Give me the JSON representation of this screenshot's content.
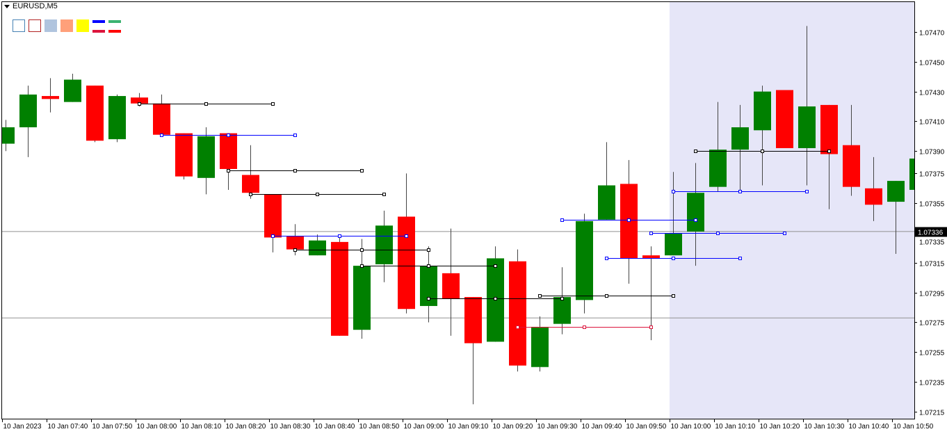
{
  "window": {
    "title": "EURUSD,M5",
    "collapse_icon": "triangle-down-icon"
  },
  "toolbar": {
    "items": [
      {
        "name": "rectangle-outline-blue",
        "border": "#4682b4",
        "fill": ""
      },
      {
        "name": "rectangle-outline-red",
        "border": "#b22222",
        "fill": ""
      },
      {
        "name": "color-lightsteelblue",
        "border": "",
        "fill": "#b0c4de"
      },
      {
        "name": "color-lightsalmon",
        "border": "",
        "fill": "#ffa07a"
      },
      {
        "name": "color-yellow",
        "border": "",
        "fill": "#ffff00"
      }
    ],
    "pairs": [
      {
        "name": "line-pair-blue-crimson",
        "top": "#0000ff",
        "bottom": "#dc143c"
      },
      {
        "name": "line-pair-green-red",
        "top": "#3cb371",
        "bottom": "#ff0000"
      }
    ]
  },
  "colors": {
    "bull": "#008000",
    "bear": "#ff0000",
    "shade": "#e6e6f8",
    "black_line": "#000000",
    "blue_line": "#0000ff",
    "red_line": "#dc143c",
    "level_line": "#909090"
  },
  "chart_data": {
    "type": "candlestick",
    "symbol": "EURUSD",
    "timeframe": "M5",
    "ylim": [
      1.0721,
      1.07478
    ],
    "y_ticks": [
      "1.07470",
      "1.07450",
      "1.07430",
      "1.07410",
      "1.07390",
      "1.07375",
      "1.07355",
      "1.07335",
      "1.07315",
      "1.07295",
      "1.07275",
      "1.07255",
      "1.07235",
      "1.07215"
    ],
    "x_ticks": [
      "10 Jan 2023",
      "10 Jan 07:40",
      "10 Jan 07:50",
      "10 Jan 08:00",
      "10 Jan 08:10",
      "10 Jan 08:20",
      "10 Jan 08:30",
      "10 Jan 08:40",
      "10 Jan 08:50",
      "10 Jan 09:00",
      "10 Jan 09:10",
      "10 Jan 09:20",
      "10 Jan 09:30",
      "10 Jan 09:40",
      "10 Jan 09:50",
      "10 Jan 10:00",
      "10 Jan 10:10",
      "10 Jan 10:20",
      "10 Jan 10:30",
      "10 Jan 10:40",
      "10 Jan 10:50"
    ],
    "current_price": "1.07336",
    "levels": [
      1.07336,
      1.07278
    ],
    "shaded_from": "10:00",
    "candles": [
      {
        "t": "07:30",
        "o": 1.07395,
        "h": 1.07411,
        "l": 1.0739,
        "c": 1.07406
      },
      {
        "t": "07:35",
        "o": 1.07406,
        "h": 1.07434,
        "l": 1.07386,
        "c": 1.07428
      },
      {
        "t": "07:40",
        "o": 1.07427,
        "h": 1.07439,
        "l": 1.07416,
        "c": 1.07425
      },
      {
        "t": "07:45",
        "o": 1.07423,
        "h": 1.07442,
        "l": 1.07423,
        "c": 1.07438
      },
      {
        "t": "07:50",
        "o": 1.07434,
        "h": 1.07434,
        "l": 1.07396,
        "c": 1.07397
      },
      {
        "t": "07:55",
        "o": 1.07398,
        "h": 1.07428,
        "l": 1.07396,
        "c": 1.07427
      },
      {
        "t": "08:00",
        "o": 1.07426,
        "h": 1.07429,
        "l": 1.0742,
        "c": 1.07422
      },
      {
        "t": "08:05",
        "o": 1.07422,
        "h": 1.07428,
        "l": 1.07401,
        "c": 1.07401
      },
      {
        "t": "08:10",
        "o": 1.07402,
        "h": 1.07402,
        "l": 1.07371,
        "c": 1.07373
      },
      {
        "t": "08:15",
        "o": 1.07372,
        "h": 1.07406,
        "l": 1.07361,
        "c": 1.074
      },
      {
        "t": "08:20",
        "o": 1.07402,
        "h": 1.07402,
        "l": 1.07364,
        "c": 1.07378
      },
      {
        "t": "08:25",
        "o": 1.07374,
        "h": 1.07394,
        "l": 1.07358,
        "c": 1.07362
      },
      {
        "t": "08:30",
        "o": 1.07361,
        "h": 1.07361,
        "l": 1.07322,
        "c": 1.07332
      },
      {
        "t": "08:35",
        "o": 1.07333,
        "h": 1.07341,
        "l": 1.0732,
        "c": 1.07324
      },
      {
        "t": "08:40",
        "o": 1.0732,
        "h": 1.07334,
        "l": 1.0732,
        "c": 1.0733
      },
      {
        "t": "08:45",
        "o": 1.07329,
        "h": 1.07333,
        "l": 1.07266,
        "c": 1.07266
      },
      {
        "t": "08:50",
        "o": 1.0727,
        "h": 1.07331,
        "l": 1.07264,
        "c": 1.07313
      },
      {
        "t": "08:55",
        "o": 1.07314,
        "h": 1.0735,
        "l": 1.07302,
        "c": 1.0734
      },
      {
        "t": "09:00",
        "o": 1.07346,
        "h": 1.07375,
        "l": 1.07281,
        "c": 1.07284
      },
      {
        "t": "09:05",
        "o": 1.07286,
        "h": 1.07326,
        "l": 1.07275,
        "c": 1.07313
      },
      {
        "t": "09:10",
        "o": 1.07308,
        "h": 1.07338,
        "l": 1.07266,
        "c": 1.07291
      },
      {
        "t": "09:15",
        "o": 1.07292,
        "h": 1.07292,
        "l": 1.0722,
        "c": 1.07261
      },
      {
        "t": "09:20",
        "o": 1.07262,
        "h": 1.07326,
        "l": 1.07262,
        "c": 1.07318
      },
      {
        "t": "09:25",
        "o": 1.07316,
        "h": 1.07324,
        "l": 1.07242,
        "c": 1.07246
      },
      {
        "t": "09:30",
        "o": 1.07245,
        "h": 1.07279,
        "l": 1.07242,
        "c": 1.07272
      },
      {
        "t": "09:35",
        "o": 1.07274,
        "h": 1.07312,
        "l": 1.07267,
        "c": 1.07292
      },
      {
        "t": "09:40",
        "o": 1.0729,
        "h": 1.07348,
        "l": 1.07281,
        "c": 1.07343
      },
      {
        "t": "09:45",
        "o": 1.07344,
        "h": 1.07396,
        "l": 1.07344,
        "c": 1.07367
      },
      {
        "t": "09:50",
        "o": 1.07368,
        "h": 1.07384,
        "l": 1.07301,
        "c": 1.07318
      },
      {
        "t": "09:55",
        "o": 1.0732,
        "h": 1.07326,
        "l": 1.07263,
        "c": 1.07318
      },
      {
        "t": "10:00",
        "o": 1.0732,
        "h": 1.07376,
        "l": 1.0732,
        "c": 1.07335
      },
      {
        "t": "10:05",
        "o": 1.07336,
        "h": 1.07382,
        "l": 1.07313,
        "c": 1.07362
      },
      {
        "t": "10:10",
        "o": 1.07366,
        "h": 1.07423,
        "l": 1.07363,
        "c": 1.07391
      },
      {
        "t": "10:15",
        "o": 1.07391,
        "h": 1.07421,
        "l": 1.07363,
        "c": 1.07406
      },
      {
        "t": "10:20",
        "o": 1.07404,
        "h": 1.07434,
        "l": 1.07367,
        "c": 1.0743
      },
      {
        "t": "10:25",
        "o": 1.07431,
        "h": 1.07431,
        "l": 1.07392,
        "c": 1.07392
      },
      {
        "t": "10:30",
        "o": 1.07392,
        "h": 1.07474,
        "l": 1.07367,
        "c": 1.0742
      },
      {
        "t": "10:35",
        "o": 1.07421,
        "h": 1.07421,
        "l": 1.07351,
        "c": 1.07388
      },
      {
        "t": "10:40",
        "o": 1.07394,
        "h": 1.07421,
        "l": 1.0736,
        "c": 1.07366
      },
      {
        "t": "10:45",
        "o": 1.07365,
        "h": 1.07386,
        "l": 1.07343,
        "c": 1.07354
      },
      {
        "t": "10:50",
        "o": 1.07356,
        "h": 1.0737,
        "l": 1.07321,
        "c": 1.0737
      },
      {
        "t": "10:55",
        "o": 1.07364,
        "h": 1.074,
        "l": 1.07359,
        "c": 1.07385
      }
    ],
    "segments": [
      {
        "from": "08:00",
        "to": "08:30",
        "price": 1.07422,
        "color": "black"
      },
      {
        "from": "08:05",
        "to": "08:35",
        "price": 1.07401,
        "color": "blue"
      },
      {
        "from": "08:20",
        "to": "08:50",
        "price": 1.07377,
        "color": "black"
      },
      {
        "from": "08:25",
        "to": "08:55",
        "price": 1.07361,
        "color": "black"
      },
      {
        "from": "08:30",
        "to": "09:00",
        "price": 1.07333,
        "color": "blue"
      },
      {
        "from": "08:35",
        "to": "09:05",
        "price": 1.07324,
        "color": "black"
      },
      {
        "from": "08:50",
        "to": "09:20",
        "price": 1.07313,
        "color": "black"
      },
      {
        "from": "09:05",
        "to": "09:35",
        "price": 1.07291,
        "color": "black"
      },
      {
        "from": "09:25",
        "to": "09:55",
        "price": 1.07272,
        "color": "red"
      },
      {
        "from": "09:35",
        "to": "10:05",
        "price": 1.07344,
        "color": "blue"
      },
      {
        "from": "09:30",
        "to": "10:00",
        "price": 1.07293,
        "color": "black"
      },
      {
        "from": "09:45",
        "to": "10:15",
        "price": 1.07318,
        "color": "blue"
      },
      {
        "from": "09:55",
        "to": "10:25",
        "price": 1.07335,
        "color": "blue"
      },
      {
        "from": "10:00",
        "to": "10:30",
        "price": 1.07363,
        "color": "blue"
      },
      {
        "from": "10:05",
        "to": "10:35",
        "price": 1.0739,
        "color": "black"
      }
    ]
  }
}
